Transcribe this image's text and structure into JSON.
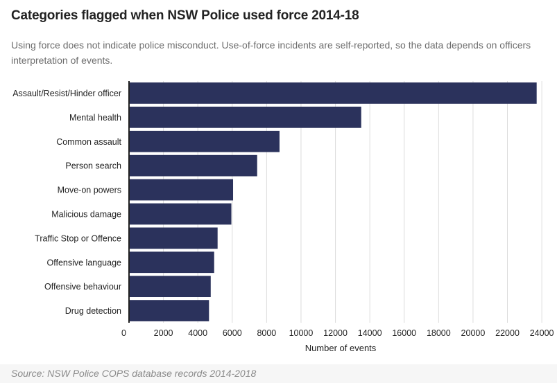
{
  "title": "Categories flagged when NSW Police used force 2014-18",
  "subtitle": "Using force does not indicate police misconduct.  Use-of-force incidents are self-reported, so the data depends on officers interpretation of events.",
  "source": "Source: NSW Police COPS database records 2014-2018",
  "colors": {
    "bar": "#2b325c",
    "grid": "#dcdcdc",
    "axis": "#222222",
    "text": "#222222"
  },
  "chart_data": {
    "type": "bar",
    "orientation": "horizontal",
    "categories": [
      "Assault/Resist/Hinder officer",
      "Mental health",
      "Common assault",
      "Person search",
      "Move-on powers",
      "Malicious damage",
      "Traffic Stop or Offence",
      "Offensive language",
      "Offensive behaviour",
      "Drug detection"
    ],
    "values": [
      23700,
      13500,
      8750,
      7450,
      6050,
      5950,
      5150,
      4950,
      4750,
      4650
    ],
    "xlabel": "Number of events",
    "ylabel": "",
    "xlim": [
      0,
      24600
    ],
    "xticks": [
      0,
      2000,
      4000,
      6000,
      8000,
      10000,
      12000,
      14000,
      16000,
      18000,
      20000,
      22000,
      24000
    ],
    "grid": true
  }
}
